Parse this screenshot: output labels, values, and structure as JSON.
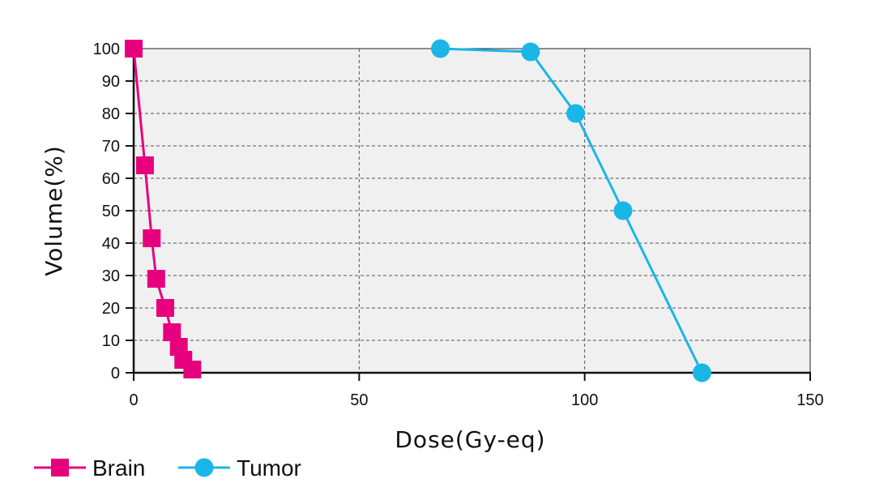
{
  "chart_data": {
    "type": "line",
    "xlabel": "Dose(Gy-eq)",
    "ylabel": "Volume(%)",
    "xlim": [
      0,
      150
    ],
    "ylim": [
      0,
      100
    ],
    "xticks": [
      0,
      50,
      100,
      150
    ],
    "yticks": [
      0,
      10,
      20,
      30,
      40,
      50,
      60,
      70,
      80,
      90,
      100
    ],
    "grid": true,
    "plot_background": "#f0f0f0",
    "legend_position": "bottom-left",
    "series": [
      {
        "name": "Brain",
        "color": "#e6007e",
        "marker": "square",
        "x": [
          0,
          2.5,
          4,
          5,
          7,
          8.5,
          10,
          11,
          13
        ],
        "y": [
          100,
          64,
          41.5,
          29,
          20,
          12.5,
          8,
          4,
          1
        ]
      },
      {
        "name": "Tumor",
        "color": "#1ab6e8",
        "marker": "circle",
        "x": [
          68,
          88,
          98,
          108.5,
          126
        ],
        "y": [
          100,
          99,
          80,
          50,
          0
        ]
      }
    ]
  }
}
